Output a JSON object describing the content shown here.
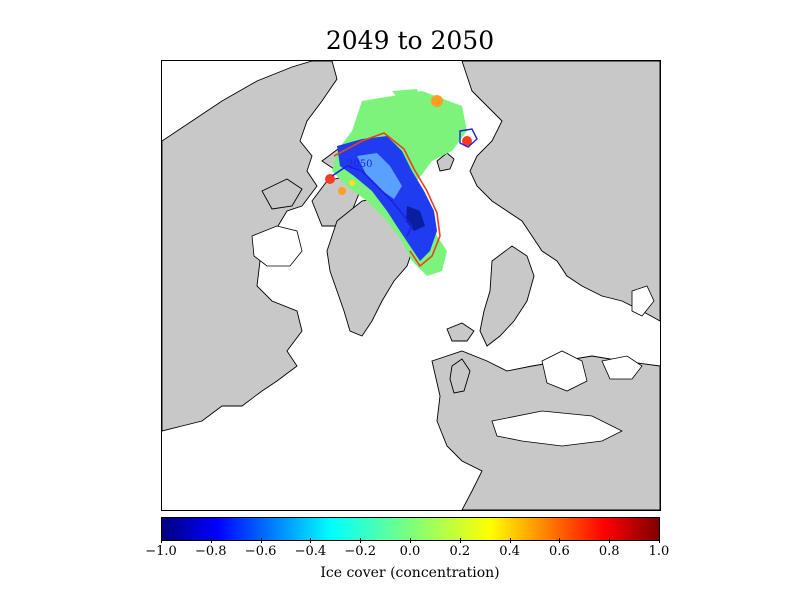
{
  "title": "2049 to 2050",
  "contour_label": "2050",
  "colorbar": {
    "label": "Ice cover (concentration)",
    "ticks": [
      "−1.0",
      "−0.8",
      "−0.6",
      "−0.4",
      "−0.2",
      "0.0",
      "0.2",
      "0.4",
      "0.6",
      "0.8",
      "1.0"
    ],
    "range": [
      -1.0,
      1.0
    ],
    "colormap": "jet"
  },
  "colors": {
    "land": "#c8c8c8",
    "ocean": "#ffffff",
    "ice_change_neutral": "#7cf47c",
    "ice_change_negative": "#0a3cff",
    "contour_red": "#e8411f",
    "contour_blue": "#1f1fe8"
  }
}
